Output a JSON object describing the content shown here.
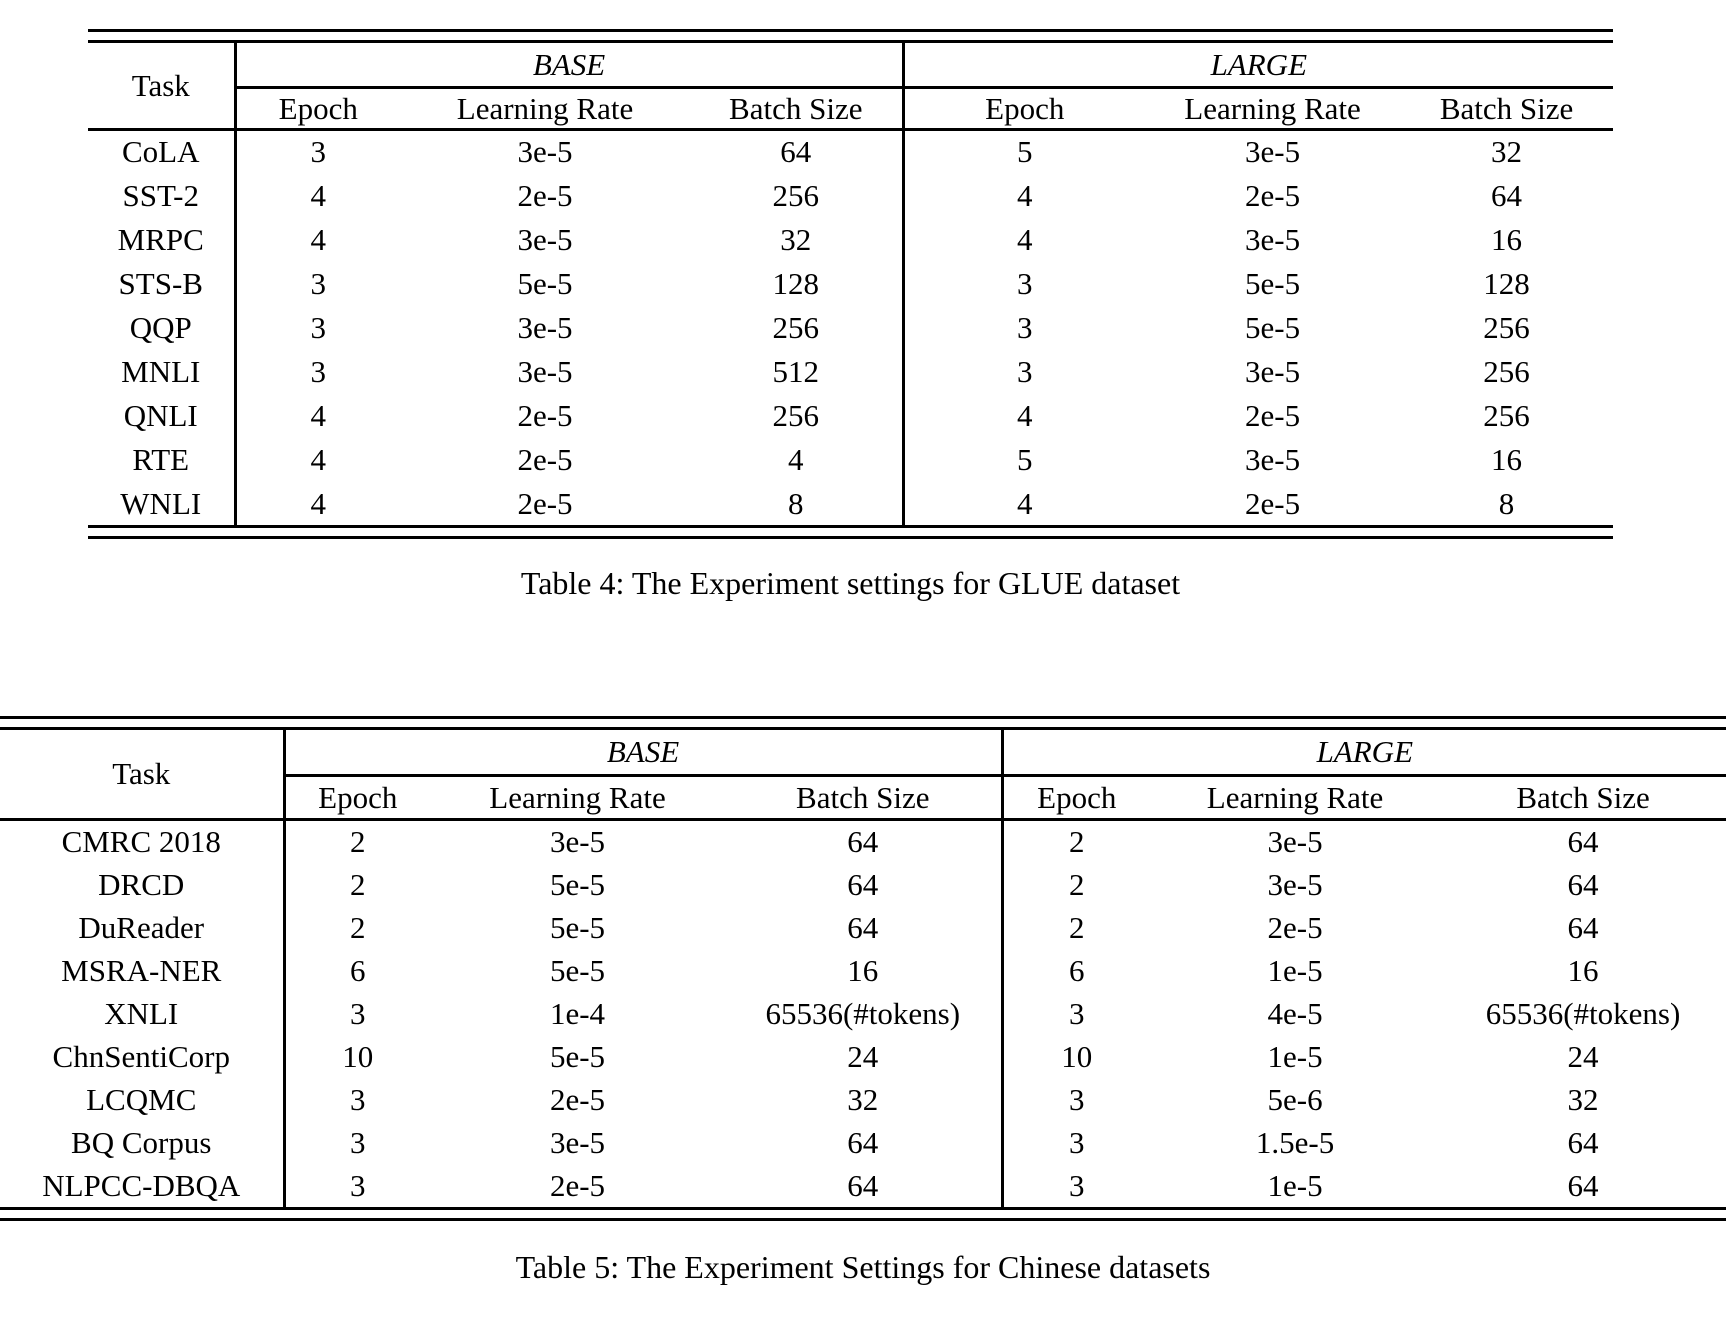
{
  "page": {
    "background": "#ffffff",
    "text_color": "#000000"
  },
  "tables": [
    {
      "id": "glue-settings",
      "caption": "Table 4: The Experiment settings for GLUE dataset",
      "task_header": "Task",
      "groups": [
        {
          "label": "BASE",
          "columns": [
            "Epoch",
            "Learning Rate",
            "Batch Size"
          ]
        },
        {
          "label": "LARGE",
          "columns": [
            "Epoch",
            "Learning Rate",
            "Batch Size"
          ]
        }
      ],
      "rows": [
        {
          "task": "CoLA",
          "base": [
            "3",
            "3e-5",
            "64"
          ],
          "large": [
            "5",
            "3e-5",
            "32"
          ]
        },
        {
          "task": "SST-2",
          "base": [
            "4",
            "2e-5",
            "256"
          ],
          "large": [
            "4",
            "2e-5",
            "64"
          ]
        },
        {
          "task": "MRPC",
          "base": [
            "4",
            "3e-5",
            "32"
          ],
          "large": [
            "4",
            "3e-5",
            "16"
          ]
        },
        {
          "task": "STS-B",
          "base": [
            "3",
            "5e-5",
            "128"
          ],
          "large": [
            "3",
            "5e-5",
            "128"
          ]
        },
        {
          "task": "QQP",
          "base": [
            "3",
            "3e-5",
            "256"
          ],
          "large": [
            "3",
            "5e-5",
            "256"
          ]
        },
        {
          "task": "MNLI",
          "base": [
            "3",
            "3e-5",
            "512"
          ],
          "large": [
            "3",
            "3e-5",
            "256"
          ]
        },
        {
          "task": "QNLI",
          "base": [
            "4",
            "2e-5",
            "256"
          ],
          "large": [
            "4",
            "2e-5",
            "256"
          ]
        },
        {
          "task": "RTE",
          "base": [
            "4",
            "2e-5",
            "4"
          ],
          "large": [
            "5",
            "3e-5",
            "16"
          ]
        },
        {
          "task": "WNLI",
          "base": [
            "4",
            "2e-5",
            "8"
          ],
          "large": [
            "4",
            "2e-5",
            "8"
          ]
        }
      ]
    },
    {
      "id": "chinese-settings",
      "caption": "Table 5: The Experiment Settings for Chinese datasets",
      "task_header": "Task",
      "groups": [
        {
          "label": "BASE",
          "columns": [
            "Epoch",
            "Learning Rate",
            "Batch Size"
          ]
        },
        {
          "label": "LARGE",
          "columns": [
            "Epoch",
            "Learning Rate",
            "Batch Size"
          ]
        }
      ],
      "rows": [
        {
          "task": "CMRC 2018",
          "base": [
            "2",
            "3e-5",
            "64"
          ],
          "large": [
            "2",
            "3e-5",
            "64"
          ]
        },
        {
          "task": "DRCD",
          "base": [
            "2",
            "5e-5",
            "64"
          ],
          "large": [
            "2",
            "3e-5",
            "64"
          ]
        },
        {
          "task": "DuReader",
          "base": [
            "2",
            "5e-5",
            "64"
          ],
          "large": [
            "2",
            "2e-5",
            "64"
          ]
        },
        {
          "task": "MSRA-NER",
          "base": [
            "6",
            "5e-5",
            "16"
          ],
          "large": [
            "6",
            "1e-5",
            "16"
          ]
        },
        {
          "task": "XNLI",
          "base": [
            "3",
            "1e-4",
            "65536(#tokens)"
          ],
          "large": [
            "3",
            "4e-5",
            "65536(#tokens)"
          ]
        },
        {
          "task": "ChnSentiCorp",
          "base": [
            "10",
            "5e-5",
            "24"
          ],
          "large": [
            "10",
            "1e-5",
            "24"
          ]
        },
        {
          "task": "LCQMC",
          "base": [
            "3",
            "2e-5",
            "32"
          ],
          "large": [
            "3",
            "5e-6",
            "32"
          ]
        },
        {
          "task": "BQ Corpus",
          "base": [
            "3",
            "3e-5",
            "64"
          ],
          "large": [
            "3",
            "1.5e-5",
            "64"
          ]
        },
        {
          "task": "NLPCC-DBQA",
          "base": [
            "3",
            "2e-5",
            "64"
          ],
          "large": [
            "3",
            "1e-5",
            "64"
          ]
        }
      ]
    }
  ]
}
